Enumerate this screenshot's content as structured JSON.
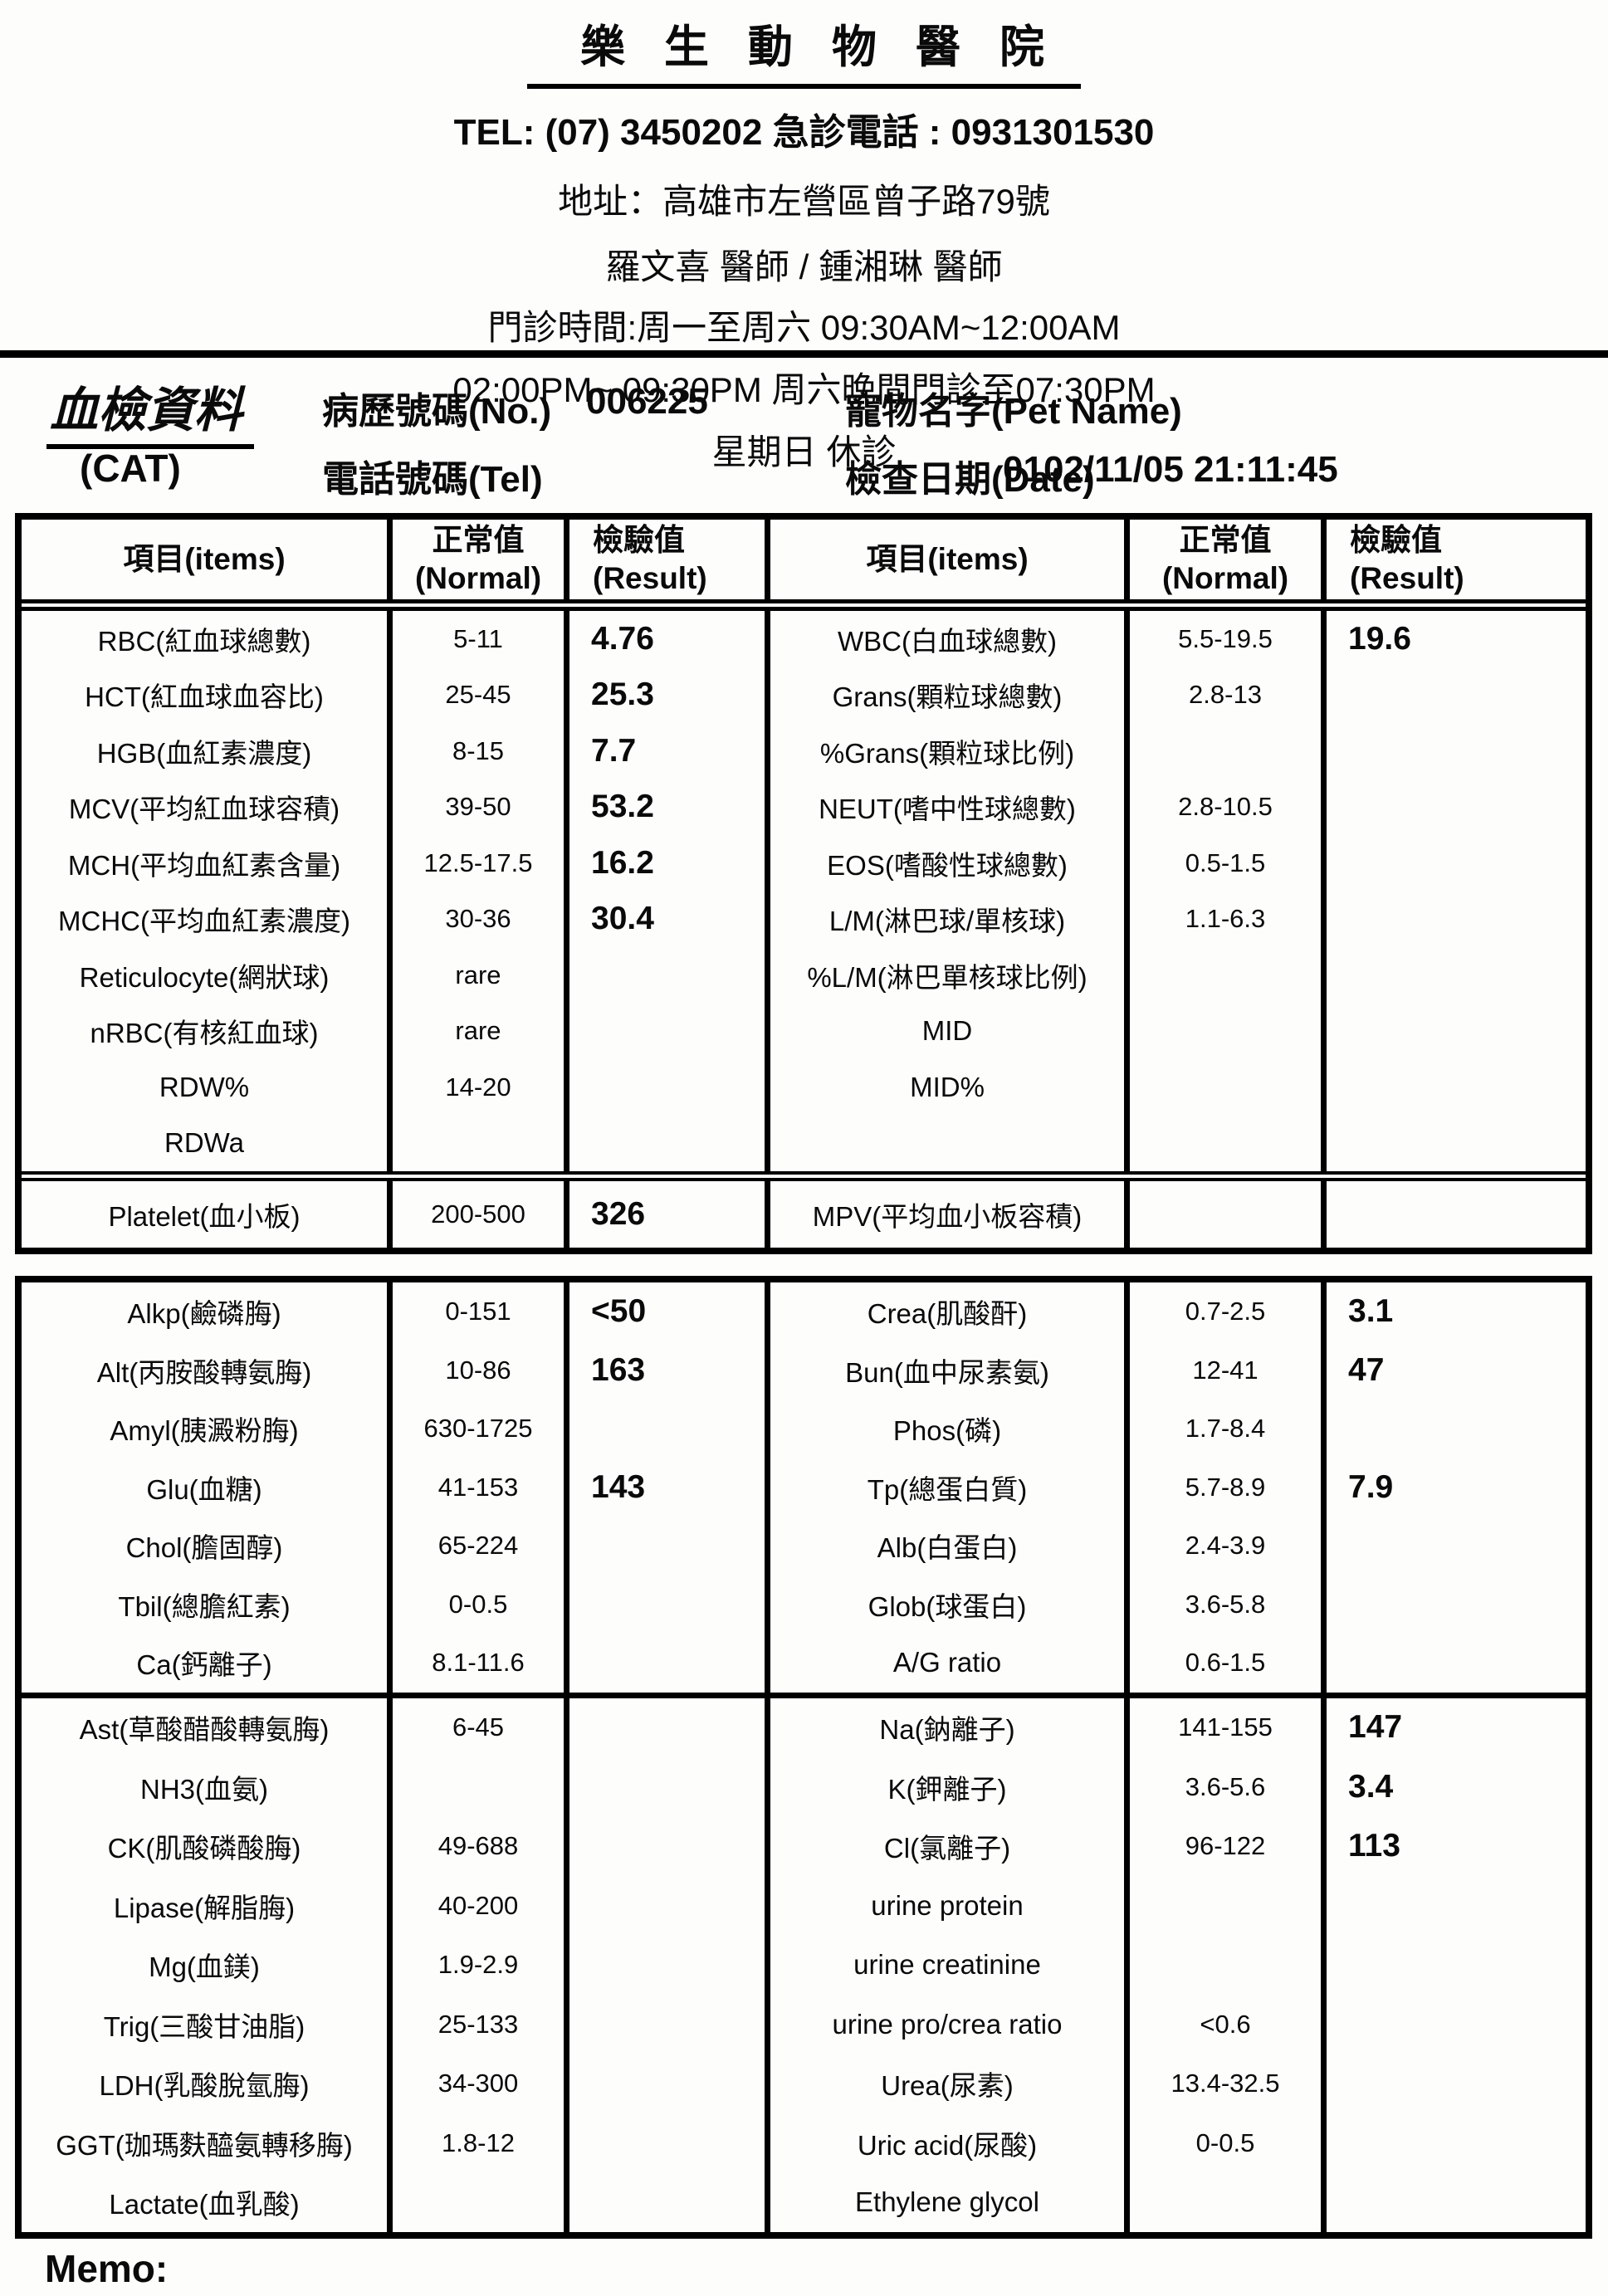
{
  "header": {
    "hospital_name": "樂 生 動 物 醫 院",
    "tel_line": "TEL: (07) 3450202  急診電話 : 0931301530",
    "address_line": "地址：高雄市左營區曾子路79號",
    "doctors_line": "羅文喜 醫師 / 鍾湘琳 醫師",
    "hours_line1": "門診時間:周一至周六 09:30AM~12:00AM",
    "hours_line2": "02:00PM~ 09:30PM 周六晚間門診至07:30PM",
    "hours_line3": "星期日  休診"
  },
  "report_info": {
    "report_title": "血檢資料",
    "species": "(CAT)",
    "no_label": "病歷號碼(No.)",
    "no_value": "006225",
    "tel_label": "電話號碼(Tel)",
    "tel_value": "",
    "pet_name_label": "寵物名字(Pet Name)",
    "pet_name_value": "",
    "date_label": "檢查日期(Date)",
    "date_value": "0102/11/05 21:11:45"
  },
  "cbc_table": {
    "headers": [
      "項目(items)",
      "正常值\n(Normal)",
      "檢驗值\n(Result)",
      "項目(items)",
      "正常值\n(Normal)",
      "檢驗值\n(Result)"
    ],
    "rows": [
      [
        "RBC(紅血球總數)",
        "5-11",
        "4.76",
        "WBC(白血球總數)",
        "5.5-19.5",
        "19.6"
      ],
      [
        "HCT(紅血球血容比)",
        "25-45",
        "25.3",
        "Grans(顆粒球總數)",
        "2.8-13",
        ""
      ],
      [
        "HGB(血紅素濃度)",
        "8-15",
        "7.7",
        "%Grans(顆粒球比例)",
        "",
        ""
      ],
      [
        "MCV(平均紅血球容積)",
        "39-50",
        "53.2",
        "NEUT(嗜中性球總數)",
        "2.8-10.5",
        ""
      ],
      [
        "MCH(平均血紅素含量)",
        "12.5-17.5",
        "16.2",
        "EOS(嗜酸性球總數)",
        "0.5-1.5",
        ""
      ],
      [
        "MCHC(平均血紅素濃度)",
        "30-36",
        "30.4",
        "L/M(淋巴球/單核球)",
        "1.1-6.3",
        ""
      ],
      [
        "Reticulocyte(網狀球)",
        "rare",
        "",
        "%L/M(淋巴單核球比例)",
        "",
        ""
      ],
      [
        "nRBC(有核紅血球)",
        "rare",
        "",
        "MID",
        "",
        ""
      ],
      [
        "RDW%",
        "14-20",
        "",
        "MID%",
        "",
        ""
      ],
      [
        "RDWa",
        "",
        "",
        "",
        "",
        ""
      ]
    ],
    "platelet_row": [
      [
        "Platelet(血小板)",
        "200-500",
        "326",
        "MPV(平均血小板容積)",
        "",
        ""
      ]
    ]
  },
  "chem_table": {
    "section1": [
      [
        "Alkp(鹼磷脢)",
        "0-151",
        "<50",
        "Crea(肌酸酐)",
        "0.7-2.5",
        "3.1"
      ],
      [
        "Alt(丙胺酸轉氨脢)",
        "10-86",
        "163",
        "Bun(血中尿素氨)",
        "12-41",
        "47"
      ],
      [
        "Amyl(胰澱粉脢)",
        "630-1725",
        "",
        "Phos(磷)",
        "1.7-8.4",
        ""
      ],
      [
        "Glu(血糖)",
        "41-153",
        "143",
        "Tp(總蛋白質)",
        "5.7-8.9",
        "7.9"
      ],
      [
        "Chol(膽固醇)",
        "65-224",
        "",
        "Alb(白蛋白)",
        "2.4-3.9",
        ""
      ],
      [
        "Tbil(總膽紅素)",
        "0-0.5",
        "",
        "Glob(球蛋白)",
        "3.6-5.8",
        ""
      ],
      [
        "Ca(鈣離子)",
        "8.1-11.6",
        "",
        "A/G ratio",
        "0.6-1.5",
        ""
      ]
    ],
    "section2": [
      [
        "Ast(草酸醋酸轉氨脢)",
        "6-45",
        "",
        "Na(鈉離子)",
        "141-155",
        "147"
      ],
      [
        "NH3(血氨)",
        "",
        "",
        "K(鉀離子)",
        "3.6-5.6",
        "3.4"
      ],
      [
        "CK(肌酸磷酸脢)",
        "49-688",
        "",
        "Cl(氯離子)",
        "96-122",
        "113"
      ],
      [
        "Lipase(解脂脢)",
        "40-200",
        "",
        "urine protein",
        "",
        ""
      ],
      [
        "Mg(血鎂)",
        "1.9-2.9",
        "",
        "urine creatinine",
        "",
        ""
      ],
      [
        "Trig(三酸甘油脂)",
        "25-133",
        "",
        "urine pro/crea ratio",
        "<0.6",
        ""
      ],
      [
        "LDH(乳酸脫氫脢)",
        "34-300",
        "",
        "Urea(尿素)",
        "13.4-32.5",
        ""
      ],
      [
        "GGT(珈瑪麩醯氨轉移脢)",
        "1.8-12",
        "",
        "Uric acid(尿酸)",
        "0-0.5",
        ""
      ],
      [
        "Lactate(血乳酸)",
        "",
        "",
        "Ethylene glycol",
        "",
        ""
      ]
    ]
  },
  "memo_label": "Memo:"
}
